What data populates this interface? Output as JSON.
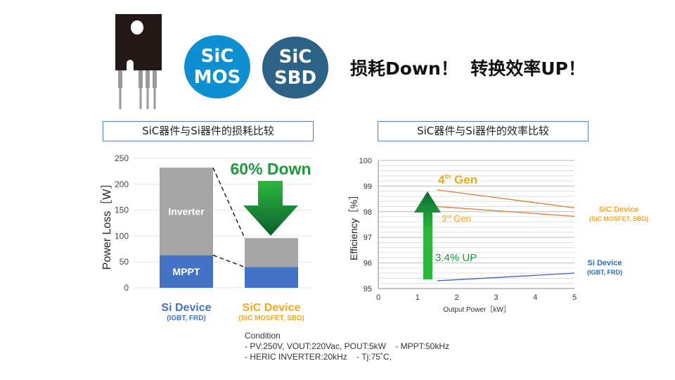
{
  "header": {
    "badges": [
      {
        "line1": "SiC",
        "line2": "MOS",
        "color": "#0e8fd1"
      },
      {
        "line1": "SiC",
        "line2": "SBD",
        "color": "#2d6287"
      }
    ],
    "headline": "损耗Down！  转换效率UP！",
    "icon": "to220-package-icon"
  },
  "colors": {
    "mppt": "#4472c4",
    "inverter": "#a6a6a6",
    "si": "#4472c4",
    "sic": "#f0a820",
    "green": "#1a9a3c",
    "sic_line": "#e07b39",
    "si_line": "#4064b8"
  },
  "chart_data": [
    {
      "type": "bar",
      "stacked": true,
      "title": "SiC器件与Si器件的损耗比较",
      "ylabel": "Power Loss［W］",
      "ylim": [
        0,
        250
      ],
      "yticks": [
        "0",
        "50",
        "100",
        "150",
        "200",
        "250"
      ],
      "grid": true,
      "categories": [
        {
          "label": "Si Device",
          "sublabel": "(IGBT, FRD)"
        },
        {
          "label": "SiC Device",
          "sublabel": "(SiC MOSFET, SBD)"
        }
      ],
      "series": [
        {
          "name": "MPPT",
          "values": [
            63,
            40
          ]
        },
        {
          "name": "Inverter",
          "values": [
            169,
            56
          ]
        }
      ],
      "annotation": "60% Down"
    },
    {
      "type": "line",
      "title": "SiC器件与Si器件的效率比较",
      "xlabel": "Output Power［kW］",
      "ylabel": "Efficiency［%］",
      "xlim": [
        0,
        5
      ],
      "ylim": [
        95,
        100
      ],
      "xticks": [
        "0",
        "1",
        "2",
        "3",
        "4",
        "5"
      ],
      "yticks": [
        "95",
        "96",
        "97",
        "98",
        "99",
        "100"
      ],
      "grid": true,
      "series": [
        {
          "name": "4th Gen",
          "x": [
            1.5,
            5
          ],
          "y": [
            98.85,
            98.15
          ]
        },
        {
          "name": "3rd Gen",
          "x": [
            1.5,
            5
          ],
          "y": [
            98.2,
            97.82
          ]
        },
        {
          "name": "Si Device",
          "x": [
            1.5,
            5
          ],
          "y": [
            95.3,
            95.6
          ]
        }
      ],
      "labels": {
        "gen4": "4",
        "gen4_sup": "th",
        "gen4_tail": " Gen",
        "gen3": "3",
        "gen3_sup": "rd",
        "gen3_tail": " Gen",
        "up": "3.4% UP",
        "sic": "SiC Device",
        "sic_sub": "(SiC MOSFET, SBD)",
        "si": "Si Device",
        "si_sub": "(IGBT, FRD)"
      }
    }
  ],
  "condition": {
    "title": "Condition",
    "lines": [
      "- PV:250V, VOUT:220Vac, POUT:5kW    - MPPT:50kHz",
      "- HERIC INVERTER:20kHz    - Tj:75˚C,"
    ]
  }
}
